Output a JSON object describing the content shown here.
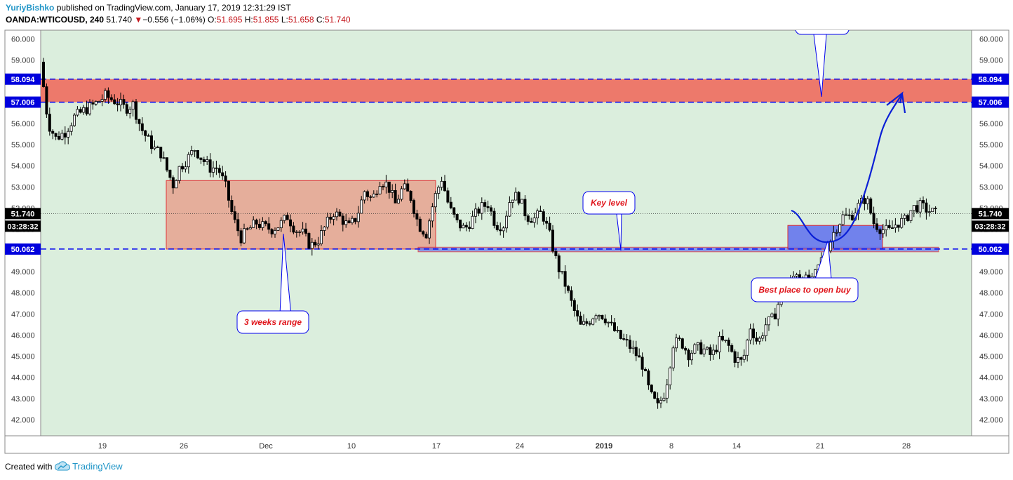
{
  "header": {
    "author": "YuriyBishko",
    "published_text": "published on TradingView.com, January 17, 2019 12:31:29 IST",
    "symbol": "OANDA:WTICOUSD, 240",
    "last": "51.740",
    "change_arrow": "▼",
    "change": "−0.556 (−1.06%)",
    "o_label": "O:",
    "o_value": "51.695",
    "h_label": "H:",
    "h_value": "51.855",
    "l_label": "L:",
    "l_value": "51.658",
    "c_label": "C:",
    "c_value": "51.740"
  },
  "footer": {
    "created_with": "Created with",
    "brand": "TradingView",
    "logo_icon": "tradingview-cloud-icon"
  },
  "colors": {
    "plot_bg": "#dbeedd",
    "resistance_zone": "#ee6b5e",
    "range_box": "#e7a490",
    "support_line": "#0000ee",
    "buy_zone": "#6677ee",
    "label_text": "#e0161c",
    "candle": "#000000",
    "price_tag_bg": "#0000dd"
  },
  "chart_data": {
    "type": "candlestick",
    "symbol": "OANDA:WTICOUSD",
    "timeframe": "240",
    "ylim": [
      41.2,
      60.6
    ],
    "y_ticks": [
      "42.000",
      "43.000",
      "44.000",
      "45.000",
      "46.000",
      "47.000",
      "48.000",
      "49.000",
      "50.000",
      "51.000",
      "52.000",
      "53.000",
      "54.000",
      "55.000",
      "56.000",
      "57.000",
      "58.000",
      "59.000",
      "60.000"
    ],
    "x_ticks": [
      {
        "label": "19",
        "bold": false
      },
      {
        "label": "26",
        "bold": false
      },
      {
        "label": "Dec",
        "bold": false
      },
      {
        "label": "10",
        "bold": false
      },
      {
        "label": "17",
        "bold": false
      },
      {
        "label": "24",
        "bold": false
      },
      {
        "label": "2019",
        "bold": true
      },
      {
        "label": "8",
        "bold": false
      },
      {
        "label": "14",
        "bold": false
      },
      {
        "label": "21",
        "bold": false
      },
      {
        "label": "28",
        "bold": false
      }
    ],
    "price_tags": [
      {
        "label": "58.094",
        "value": 58.094,
        "style": "blue"
      },
      {
        "label": "57.006",
        "value": 57.006,
        "style": "blue"
      },
      {
        "label": "51.740",
        "value": 51.74,
        "style": "black"
      },
      {
        "label": "03:28:32",
        "value": 51.74,
        "style": "black-timer"
      },
      {
        "label": "50.062",
        "value": 50.062,
        "style": "blue"
      }
    ],
    "horizontal_lines": [
      58.094,
      57.006,
      50.062
    ],
    "last_price": 51.74,
    "zones": [
      {
        "name": "resistance",
        "from": 57.006,
        "to": 58.094
      },
      {
        "name": "3-week-range",
        "from": 50.062,
        "to": 53.3
      },
      {
        "name": "buy-zone",
        "from": 50.062,
        "to": 50.65
      },
      {
        "name": "key-level-band",
        "from": 50.0,
        "to": 50.15
      }
    ],
    "annotations": [
      {
        "text": "3 weeks range"
      },
      {
        "text": "Key level"
      },
      {
        "text": "Best place to open buy"
      },
      {
        "text": ""
      }
    ],
    "price_path": [
      [
        0,
        58.9
      ],
      [
        5,
        56.0
      ],
      [
        10,
        55.3
      ],
      [
        16,
        55.6
      ],
      [
        22,
        56.3
      ],
      [
        28,
        56.6
      ],
      [
        35,
        56.9
      ],
      [
        42,
        57.3
      ],
      [
        50,
        57.0
      ],
      [
        55,
        56.7
      ],
      [
        60,
        56.9
      ],
      [
        65,
        55.8
      ],
      [
        70,
        55.2
      ],
      [
        74,
        54.8
      ],
      [
        78,
        54.6
      ],
      [
        82,
        53.8
      ],
      [
        86,
        53.1
      ],
      [
        90,
        53.9
      ],
      [
        95,
        54.3
      ],
      [
        100,
        54.8
      ],
      [
        105,
        54.3
      ],
      [
        110,
        53.9
      ],
      [
        115,
        53.9
      ],
      [
        120,
        53.0
      ],
      [
        125,
        51.5
      ],
      [
        130,
        50.6
      ],
      [
        135,
        51.0
      ],
      [
        140,
        51.3
      ],
      [
        145,
        51.1
      ],
      [
        150,
        51.0
      ],
      [
        155,
        51.2
      ],
      [
        160,
        51.6
      ],
      [
        165,
        51.0
      ],
      [
        170,
        50.8
      ],
      [
        175,
        50.2
      ],
      [
        180,
        50.5
      ],
      [
        185,
        51.2
      ],
      [
        190,
        51.8
      ],
      [
        195,
        51.5
      ],
      [
        200,
        51.1
      ],
      [
        205,
        51.6
      ],
      [
        210,
        52.8
      ],
      [
        215,
        52.4
      ],
      [
        220,
        53.3
      ],
      [
        225,
        53.1
      ],
      [
        230,
        52.2
      ],
      [
        235,
        53.0
      ],
      [
        240,
        52.5
      ],
      [
        245,
        51.2
      ],
      [
        250,
        50.8
      ],
      [
        255,
        52.4
      ],
      [
        260,
        53.4
      ],
      [
        265,
        52.0
      ],
      [
        270,
        51.3
      ],
      [
        275,
        51.0
      ],
      [
        280,
        51.5
      ],
      [
        285,
        52.0
      ],
      [
        290,
        52.2
      ],
      [
        295,
        51.2
      ],
      [
        300,
        51.2
      ],
      [
        305,
        52.6
      ],
      [
        310,
        52.5
      ],
      [
        315,
        51.6
      ],
      [
        320,
        51.5
      ],
      [
        325,
        51.8
      ],
      [
        330,
        50.7
      ],
      [
        335,
        49.3
      ],
      [
        340,
        48.4
      ],
      [
        345,
        47.3
      ],
      [
        350,
        46.4
      ],
      [
        355,
        46.6
      ],
      [
        360,
        47.1
      ],
      [
        365,
        46.9
      ],
      [
        370,
        46.4
      ],
      [
        375,
        45.9
      ],
      [
        380,
        45.6
      ],
      [
        385,
        45.2
      ],
      [
        390,
        44.6
      ],
      [
        395,
        43.2
      ],
      [
        400,
        42.6
      ],
      [
        405,
        43.4
      ],
      [
        410,
        45.6
      ],
      [
        415,
        45.7
      ],
      [
        420,
        45.1
      ],
      [
        425,
        45.4
      ],
      [
        430,
        45.3
      ],
      [
        435,
        45.0
      ],
      [
        440,
        45.7
      ],
      [
        445,
        45.6
      ],
      [
        450,
        44.9
      ],
      [
        455,
        44.7
      ],
      [
        460,
        46.4
      ],
      [
        465,
        45.6
      ],
      [
        470,
        46.5
      ],
      [
        475,
        46.8
      ],
      [
        480,
        47.9
      ],
      [
        485,
        48.4
      ],
      [
        490,
        49.0
      ],
      [
        495,
        48.6
      ],
      [
        500,
        48.5
      ],
      [
        505,
        49.4
      ],
      [
        510,
        50.2
      ],
      [
        515,
        51.0
      ],
      [
        520,
        51.6
      ],
      [
        525,
        51.6
      ],
      [
        530,
        52.1
      ],
      [
        535,
        52.5
      ],
      [
        540,
        51.3
      ],
      [
        545,
        51.0
      ],
      [
        550,
        50.9
      ],
      [
        555,
        51.3
      ],
      [
        560,
        51.4
      ],
      [
        565,
        52.0
      ],
      [
        570,
        52.1
      ],
      [
        575,
        51.9
      ],
      [
        580,
        51.74
      ]
    ]
  }
}
